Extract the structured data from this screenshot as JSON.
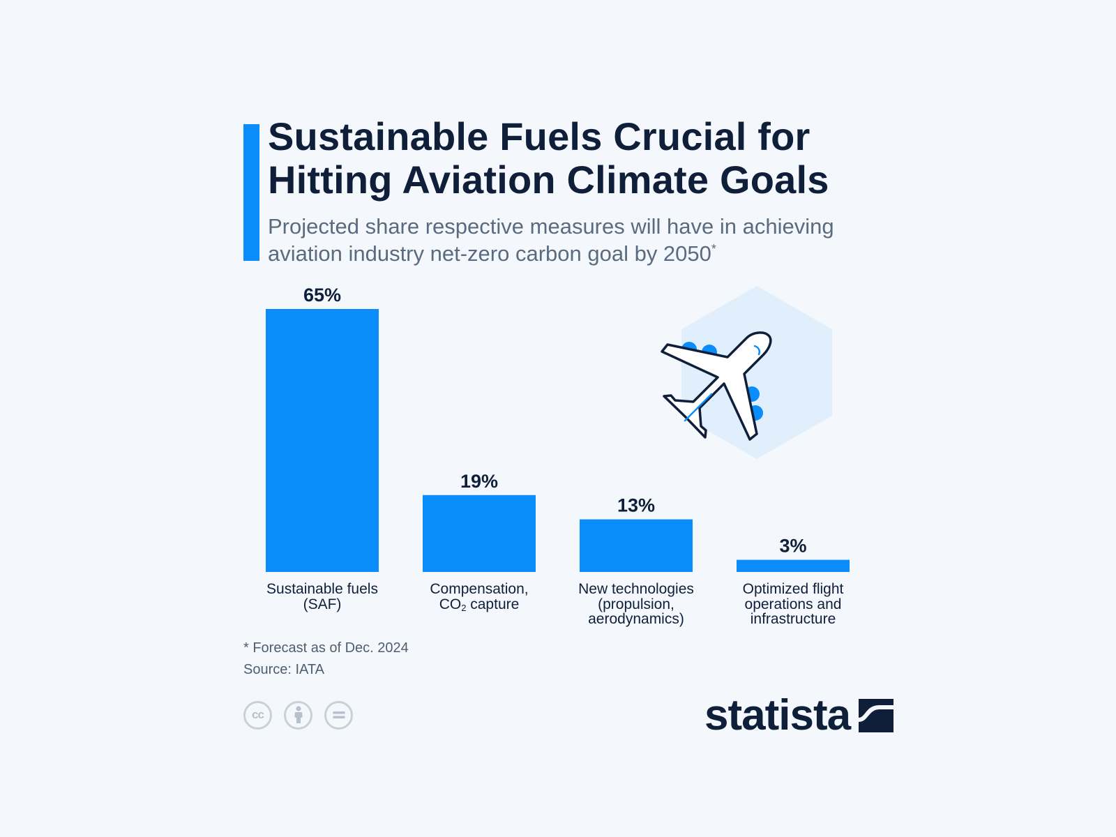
{
  "title_lines": [
    "Sustainable Fuels Crucial for",
    "Hitting Aviation Climate Goals"
  ],
  "subtitle_lines": [
    "Projected share respective measures will have in achieving",
    "aviation industry net-zero carbon goal by 2050"
  ],
  "subtitle_marker": "*",
  "chart_data": {
    "type": "bar",
    "categories": [
      "Sustainable fuels (SAF)",
      "Compensation, CO₂ capture",
      "New technologies (propulsion, aerodynamics)",
      "Optimized flight operations and infrastructure"
    ],
    "category_label_lines": [
      [
        "Sustainable fuels",
        "(SAF)"
      ],
      [
        "Compensation,",
        "CO₂ capture"
      ],
      [
        "New technologies",
        "(propulsion,",
        "aerodynamics)"
      ],
      [
        "Optimized flight",
        "operations and",
        "infrastructure"
      ]
    ],
    "values": [
      65,
      19,
      13,
      3
    ],
    "value_labels": [
      "65%",
      "19%",
      "13%",
      "3%"
    ],
    "unit": "%",
    "ylim": [
      0,
      65
    ],
    "grid": false,
    "bar_color": "#0a8cfb"
  },
  "footnote": "* Forecast as of Dec. 2024",
  "source": "Source: IATA",
  "license_icons": [
    "cc-icon",
    "attribution-icon",
    "no-derivatives-icon"
  ],
  "brand": {
    "name": "statista",
    "color": "#0f1f3a"
  },
  "illustration": {
    "icon": "airplane-icon",
    "hex_color": "#e1eefc",
    "accent_color": "#0a8cfb"
  }
}
